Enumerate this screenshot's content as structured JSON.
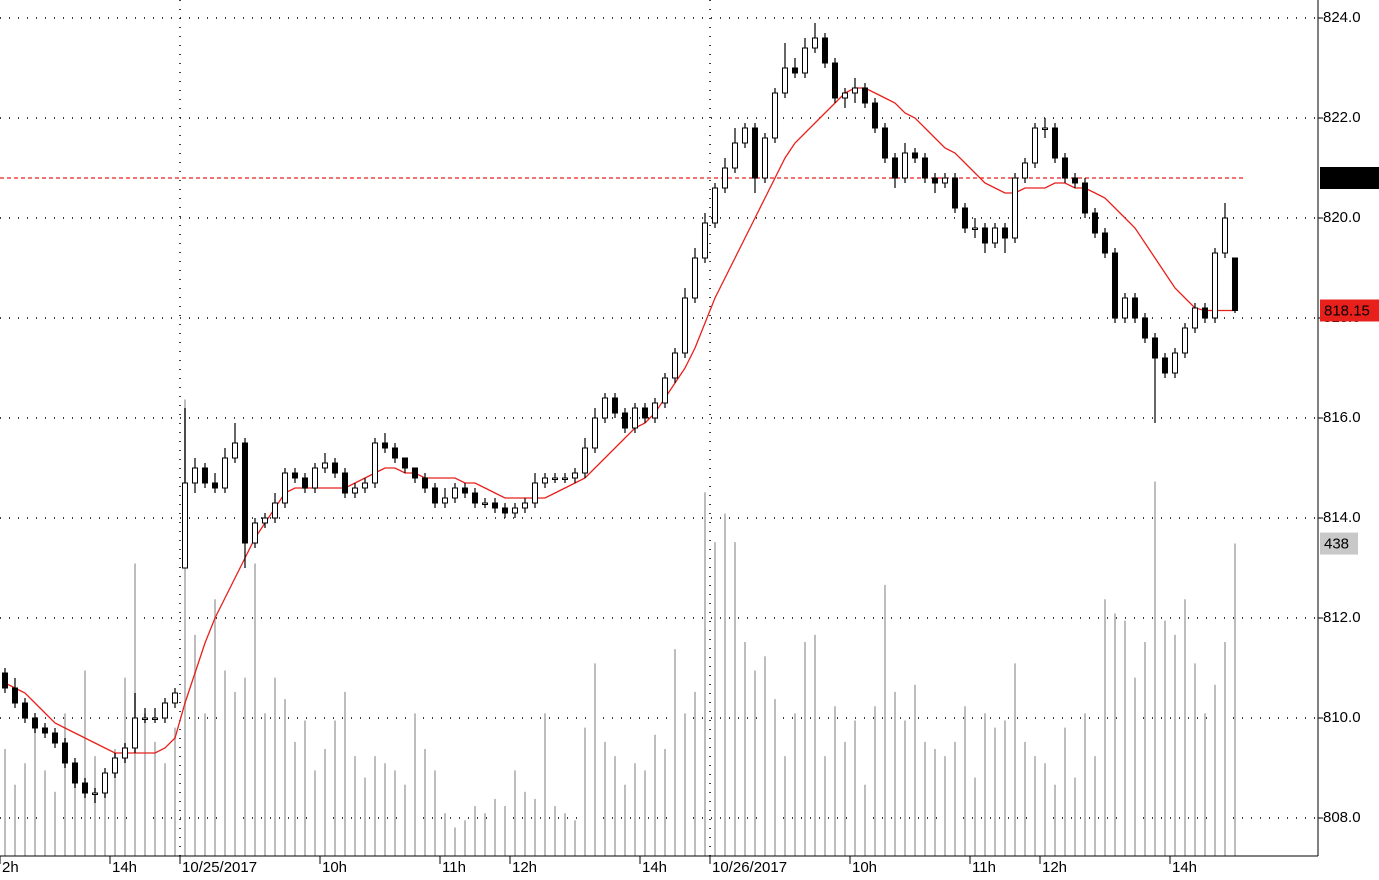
{
  "chart_data": {
    "type": "candlestick",
    "categories": [
      "2h",
      null,
      null,
      null,
      null,
      null,
      null,
      null,
      null,
      null,
      null,
      "14h",
      null,
      null,
      null,
      null,
      null,
      null,
      "10/25/2017",
      null,
      null,
      null,
      null,
      null,
      null,
      null,
      null,
      null,
      null,
      null,
      null,
      null,
      "10h",
      null,
      null,
      null,
      null,
      null,
      null,
      null,
      null,
      null,
      null,
      null,
      "11h",
      null,
      null,
      null,
      null,
      null,
      null,
      "12h",
      null,
      null,
      null,
      null,
      null,
      null,
      null,
      null,
      null,
      null,
      null,
      null,
      "14h",
      null,
      null,
      null,
      null,
      null,
      null,
      "10/26/2017",
      null,
      null,
      null,
      null,
      null,
      null,
      null,
      null,
      null,
      null,
      null,
      null,
      null,
      "10h",
      null,
      null,
      null,
      null,
      null,
      null,
      null,
      null,
      null,
      null,
      null,
      "11h",
      null,
      null,
      null,
      null,
      null,
      null,
      "12h",
      null,
      null,
      null,
      null,
      null,
      null,
      null,
      null,
      null,
      null,
      null,
      null,
      "14h",
      null,
      null,
      null,
      null,
      null,
      null
    ],
    "opens": [
      810.9,
      810.6,
      810.3,
      810.0,
      809.8,
      809.7,
      809.5,
      809.1,
      808.7,
      808.5,
      808.5,
      808.9,
      809.2,
      809.4,
      810.0,
      810.0,
      810.0,
      810.3,
      813.0,
      814.7,
      815.0,
      814.7,
      814.6,
      815.2,
      815.5,
      813.5,
      813.9,
      814.0,
      814.3,
      814.9,
      814.8,
      814.6,
      815.0,
      815.1,
      814.9,
      814.5,
      814.6,
      814.7,
      815.5,
      815.4,
      815.2,
      815.0,
      814.8,
      814.6,
      814.3,
      814.4,
      814.6,
      814.5,
      814.3,
      814.3,
      814.2,
      814.1,
      814.2,
      814.3,
      814.7,
      814.8,
      814.8,
      814.8,
      814.9,
      815.4,
      816.0,
      816.4,
      816.1,
      815.8,
      816.2,
      816.0,
      816.3,
      816.8,
      817.3,
      818.4,
      819.2,
      819.9,
      820.6,
      821.0,
      821.5,
      821.8,
      820.8,
      821.6,
      822.5,
      823.0,
      822.9,
      823.4,
      823.6,
      823.1,
      822.4,
      822.5,
      822.6,
      822.3,
      821.8,
      821.2,
      820.8,
      821.3,
      821.2,
      820.8,
      820.7,
      820.8,
      820.2,
      819.8,
      819.8,
      819.5,
      819.8,
      819.6,
      820.8,
      821.1,
      821.8,
      821.8,
      821.2,
      820.8,
      820.7,
      820.1,
      819.7,
      819.3,
      818.0,
      818.4,
      818.0,
      817.6,
      817.2,
      816.9,
      817.3,
      817.8,
      818.2,
      818.0,
      819.3,
      819.2
    ],
    "highs": [
      811.0,
      810.8,
      810.4,
      810.1,
      809.9,
      809.8,
      809.6,
      809.2,
      808.8,
      808.6,
      809.0,
      809.3,
      809.5,
      810.5,
      810.2,
      810.2,
      810.4,
      810.6,
      816.2,
      815.2,
      815.1,
      814.9,
      815.4,
      815.9,
      815.6,
      814.0,
      814.1,
      814.5,
      815.0,
      815.0,
      814.9,
      815.1,
      815.3,
      815.2,
      815.0,
      814.7,
      814.8,
      815.6,
      815.7,
      815.5,
      815.2,
      815.0,
      814.9,
      814.7,
      814.6,
      814.7,
      814.7,
      814.6,
      814.4,
      814.4,
      814.3,
      814.3,
      814.4,
      814.9,
      814.9,
      814.9,
      814.9,
      815.0,
      815.6,
      816.2,
      816.5,
      816.5,
      816.2,
      816.3,
      816.3,
      816.4,
      816.9,
      817.4,
      818.6,
      819.4,
      820.1,
      820.7,
      821.2,
      821.8,
      821.9,
      821.9,
      821.7,
      822.6,
      823.5,
      823.2,
      823.6,
      823.9,
      823.7,
      823.2,
      822.6,
      822.8,
      822.7,
      822.4,
      821.9,
      821.3,
      821.5,
      821.4,
      821.3,
      820.9,
      820.9,
      820.9,
      820.3,
      820.0,
      819.9,
      819.9,
      819.9,
      820.9,
      821.2,
      821.9,
      822.0,
      821.9,
      821.3,
      820.9,
      820.8,
      820.2,
      819.8,
      819.4,
      818.5,
      818.5,
      818.1,
      817.7,
      817.3,
      817.4,
      817.9,
      818.3,
      818.3,
      819.4,
      820.3,
      819.2
    ],
    "lows": [
      810.5,
      810.2,
      809.9,
      809.7,
      809.6,
      809.4,
      809.0,
      808.6,
      808.4,
      808.3,
      808.4,
      808.8,
      809.1,
      809.3,
      809.9,
      809.9,
      809.9,
      810.2,
      813.0,
      814.5,
      814.6,
      814.5,
      814.5,
      815.1,
      813.0,
      813.4,
      813.8,
      813.9,
      814.2,
      814.7,
      814.5,
      814.5,
      814.9,
      814.8,
      814.4,
      814.4,
      814.5,
      814.6,
      815.3,
      815.1,
      814.9,
      814.7,
      814.5,
      814.2,
      814.2,
      814.3,
      814.4,
      814.2,
      814.2,
      814.1,
      814.0,
      814.0,
      814.1,
      814.2,
      814.6,
      814.7,
      814.7,
      814.7,
      814.8,
      815.3,
      815.9,
      816.0,
      815.7,
      815.7,
      815.9,
      815.9,
      816.2,
      816.7,
      817.2,
      818.3,
      819.1,
      819.8,
      820.5,
      820.9,
      821.4,
      820.5,
      820.7,
      821.5,
      822.4,
      822.8,
      822.8,
      823.3,
      823.0,
      822.3,
      822.2,
      822.3,
      822.2,
      821.7,
      821.1,
      820.6,
      820.7,
      821.1,
      820.7,
      820.5,
      820.6,
      820.1,
      819.7,
      819.6,
      819.3,
      819.4,
      819.3,
      819.5,
      820.7,
      821.0,
      821.6,
      821.1,
      820.7,
      820.6,
      820.0,
      819.6,
      819.2,
      817.9,
      817.9,
      817.9,
      817.5,
      815.9,
      816.8,
      816.8,
      817.2,
      817.7,
      817.9,
      817.9,
      819.2,
      818.1
    ],
    "closes": [
      810.6,
      810.3,
      810.0,
      809.8,
      809.7,
      809.5,
      809.1,
      808.7,
      808.5,
      808.5,
      808.9,
      809.2,
      809.4,
      810.0,
      810.0,
      810.0,
      810.3,
      810.5,
      814.7,
      815.0,
      814.7,
      814.6,
      815.2,
      815.5,
      813.5,
      813.9,
      814.0,
      814.3,
      814.9,
      814.8,
      814.6,
      815.0,
      815.1,
      814.9,
      814.5,
      814.6,
      814.7,
      815.5,
      815.4,
      815.2,
      815.0,
      814.8,
      814.6,
      814.3,
      814.4,
      814.6,
      814.5,
      814.3,
      814.3,
      814.2,
      814.1,
      814.2,
      814.3,
      814.7,
      814.8,
      814.8,
      814.8,
      814.9,
      815.4,
      816.0,
      816.4,
      816.1,
      815.8,
      816.2,
      816.0,
      816.3,
      816.8,
      817.3,
      818.4,
      819.2,
      819.9,
      820.6,
      821.0,
      821.5,
      821.8,
      820.8,
      821.6,
      822.5,
      823.0,
      822.9,
      823.4,
      823.6,
      823.1,
      822.4,
      822.5,
      822.6,
      822.3,
      821.8,
      821.2,
      820.8,
      821.3,
      821.2,
      820.8,
      820.7,
      820.8,
      820.2,
      819.8,
      819.8,
      819.5,
      819.8,
      819.6,
      820.8,
      821.1,
      821.8,
      821.8,
      821.2,
      820.8,
      820.7,
      820.1,
      819.7,
      819.3,
      818.0,
      818.4,
      818.0,
      817.6,
      817.2,
      816.9,
      817.3,
      817.8,
      818.2,
      818.0,
      819.3,
      820.0,
      818.15
    ],
    "up_color": "#ffffff",
    "down_color": "#000000",
    "moving_average": {
      "color": "#e8201c",
      "values": [
        810.7,
        810.6,
        810.5,
        810.3,
        810.1,
        809.9,
        809.8,
        809.7,
        809.6,
        809.5,
        809.4,
        809.3,
        809.3,
        809.3,
        809.3,
        809.3,
        809.4,
        809.6,
        810.3,
        810.9,
        811.5,
        812.0,
        812.4,
        812.8,
        813.2,
        813.6,
        813.9,
        814.2,
        814.5,
        814.6,
        814.6,
        814.6,
        814.6,
        814.6,
        814.6,
        814.7,
        814.8,
        814.9,
        815.0,
        815.0,
        814.9,
        814.9,
        814.8,
        814.8,
        814.8,
        814.8,
        814.7,
        814.7,
        814.6,
        814.5,
        814.4,
        814.4,
        814.4,
        814.4,
        814.4,
        814.5,
        814.6,
        814.7,
        814.8,
        815.0,
        815.2,
        815.4,
        815.6,
        815.8,
        815.9,
        816.1,
        816.4,
        816.7,
        817.0,
        817.4,
        817.9,
        818.4,
        818.8,
        819.2,
        819.6,
        820.0,
        820.4,
        820.8,
        821.2,
        821.5,
        821.7,
        821.9,
        822.1,
        822.3,
        822.5,
        822.6,
        822.6,
        822.5,
        822.4,
        822.3,
        822.1,
        822.0,
        821.8,
        821.6,
        821.4,
        821.3,
        821.1,
        820.9,
        820.7,
        820.6,
        820.5,
        820.5,
        820.6,
        820.6,
        820.6,
        820.7,
        820.7,
        820.6,
        820.6,
        820.5,
        820.4,
        820.2,
        820.0,
        819.8,
        819.5,
        819.2,
        818.9,
        818.6,
        818.4,
        818.2,
        818.15,
        818.15,
        818.15,
        818.15
      ]
    },
    "volume": {
      "color": "#bdbdbd",
      "axis": "y2",
      "values": [
        150,
        100,
        130,
        180,
        120,
        90,
        200,
        120,
        260,
        140,
        110,
        150,
        250,
        410,
        200,
        160,
        130,
        180,
        640,
        310,
        200,
        360,
        260,
        230,
        250,
        410,
        200,
        250,
        220,
        160,
        190,
        120,
        150,
        190,
        230,
        140,
        110,
        140,
        130,
        120,
        100,
        200,
        150,
        120,
        60,
        40,
        50,
        70,
        60,
        80,
        70,
        120,
        90,
        80,
        200,
        70,
        60,
        50,
        180,
        270,
        160,
        140,
        100,
        130,
        120,
        170,
        150,
        290,
        200,
        230,
        510,
        440,
        480,
        440,
        300,
        260,
        280,
        220,
        140,
        200,
        300,
        310,
        140,
        210,
        160,
        190,
        100,
        210,
        380,
        230,
        190,
        240,
        160,
        150,
        140,
        160,
        210,
        110,
        200,
        180,
        190,
        270,
        160,
        140,
        130,
        100,
        180,
        110,
        200,
        140,
        360,
        340,
        330,
        250,
        300,
        525,
        330,
        310,
        360,
        270,
        200,
        240,
        300,
        438
      ]
    },
    "hline": {
      "value": 820.8,
      "color": "#e8201c"
    },
    "last_price": {
      "value": 818.15,
      "color": "#e8201c"
    },
    "ylim": [
      807.24,
      824.36
    ],
    "yticks": [
      {
        "value": 808,
        "label": "808.0"
      },
      {
        "value": 810,
        "label": "810.0"
      },
      {
        "value": 812,
        "label": "812.0"
      },
      {
        "value": 814,
        "label": "814.0"
      },
      {
        "value": 816,
        "label": "816.0"
      },
      {
        "value": 818,
        "label": "818.0"
      },
      {
        "value": 820,
        "label": "820.0"
      },
      {
        "value": 822,
        "label": "822.0"
      },
      {
        "value": 824,
        "label": "824.0"
      }
    ],
    "y2lim": [
      0,
      1200
    ],
    "grid": true
  }
}
